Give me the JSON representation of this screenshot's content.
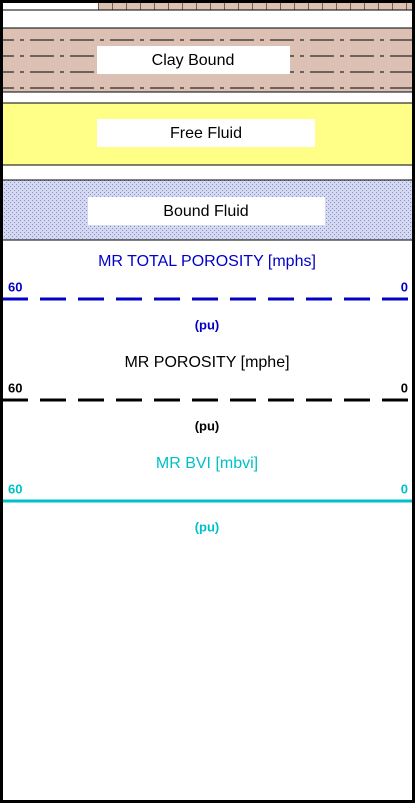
{
  "zones": [
    {
      "label": "Clay Bound"
    },
    {
      "label": "Free Fluid"
    },
    {
      "label": "Bound Fluid"
    }
  ],
  "curves": [
    {
      "name": "MR TOTAL POROSITY  [mphs]",
      "left": "60",
      "right": "0",
      "unit": "(pu)",
      "color": "#0000c8",
      "style": "dashed"
    },
    {
      "name": "MR POROSITY  [mphe]",
      "left": "60",
      "right": "0",
      "unit": "(pu)",
      "color": "#000000",
      "style": "dashed"
    },
    {
      "name": "MR BVI  [mbvi]",
      "left": "60",
      "right": "0",
      "unit": "(pu)",
      "color": "#00c0c8",
      "style": "solid"
    }
  ]
}
